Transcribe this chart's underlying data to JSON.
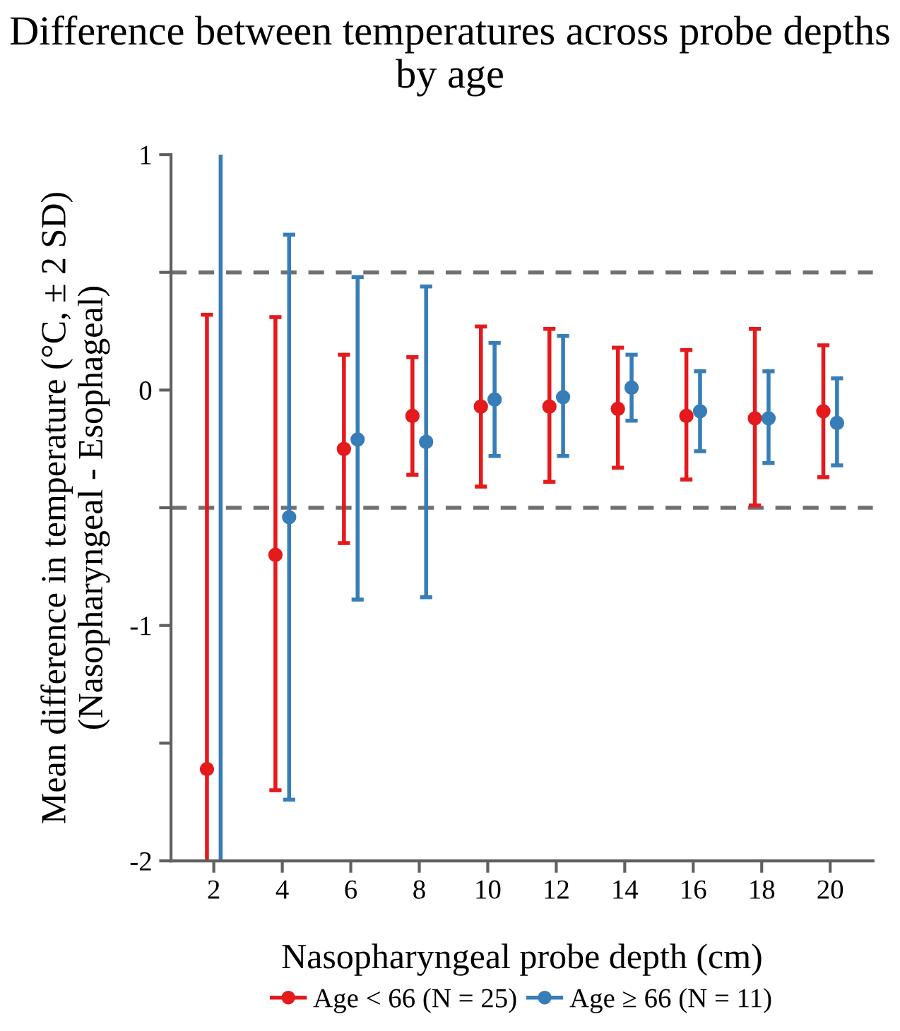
{
  "chart_data": {
    "type": "scatter",
    "title": "Difference between temperatures across probe depths by age",
    "xlabel": "Nasopharyngeal probe depth (cm)",
    "ylabel": "Mean difference in temperature (°C, ± 2 SD)\n(Nasopharyngeal - Esophageal)",
    "xlim": [
      0.75,
      21.25
    ],
    "xticks": [
      2,
      4,
      6,
      8,
      10,
      12,
      14,
      16,
      18,
      20
    ],
    "ylim": [
      -2,
      1
    ],
    "yticks": [
      -2,
      {
        "value": -1.5,
        "label": null
      },
      -1,
      {
        "value": -0.5,
        "label": null
      },
      0,
      {
        "value": 0.5,
        "label": null
      },
      1
    ],
    "legend": "bottom",
    "grid": false,
    "ref_lines": [
      {
        "axis": "y",
        "value": 0.5,
        "label": null,
        "color": "#707070",
        "line_style": "dashed"
      },
      {
        "axis": "y",
        "value": -0.5,
        "label": null,
        "color": "#707070",
        "line_style": "dashed"
      }
    ],
    "series": [
      {
        "name": "Age < 66 (N = 25)",
        "color": "#e41a1c",
        "marker": "circle",
        "x": [
          1.8,
          3.8,
          5.8,
          7.8,
          9.8,
          11.8,
          13.8,
          15.8,
          17.8,
          19.8
        ],
        "values": [
          -1.61,
          -0.7,
          -0.25,
          -0.11,
          -0.07,
          -0.07,
          -0.08,
          -0.11,
          -0.12,
          -0.09
        ],
        "errors": [
          [
            -2,
            0.32
          ],
          [
            -1.7,
            0.31
          ],
          [
            -0.65,
            0.15
          ],
          [
            -0.36,
            0.14
          ],
          [
            -0.41,
            0.27
          ],
          [
            -0.39,
            0.26
          ],
          [
            -0.33,
            0.18
          ],
          [
            -0.38,
            0.17
          ],
          [
            -0.49,
            0.26
          ],
          [
            -0.37,
            0.19
          ]
        ]
      },
      {
        "name": "Age ≥ 66 (N = 11)",
        "color": "#377eb8",
        "marker": "circle",
        "x": [
          4.2,
          6.2,
          8.2,
          10.2,
          12.2,
          14.2,
          16.2,
          18.2,
          20.2
        ],
        "values": [
          -0.54,
          -0.21,
          -0.22,
          -0.04,
          -0.03,
          0.01,
          -0.09,
          -0.12,
          -0.14
        ],
        "errors": [
          [
            -1.74,
            0.66
          ],
          [
            -0.89,
            0.48
          ],
          [
            -0.88,
            0.44
          ],
          [
            -0.28,
            0.2
          ],
          [
            -0.28,
            0.23
          ],
          [
            -0.13,
            0.15
          ],
          [
            -0.26,
            0.08
          ],
          [
            -0.31,
            0.08
          ],
          [
            -0.32,
            0.05
          ]
        ]
      },
      {
        "type": "line",
        "marker": "none",
        "color": "#377eb8",
        "x": [
          2.2,
          2.2
        ],
        "values": [
          -2,
          1
        ]
      }
    ]
  }
}
